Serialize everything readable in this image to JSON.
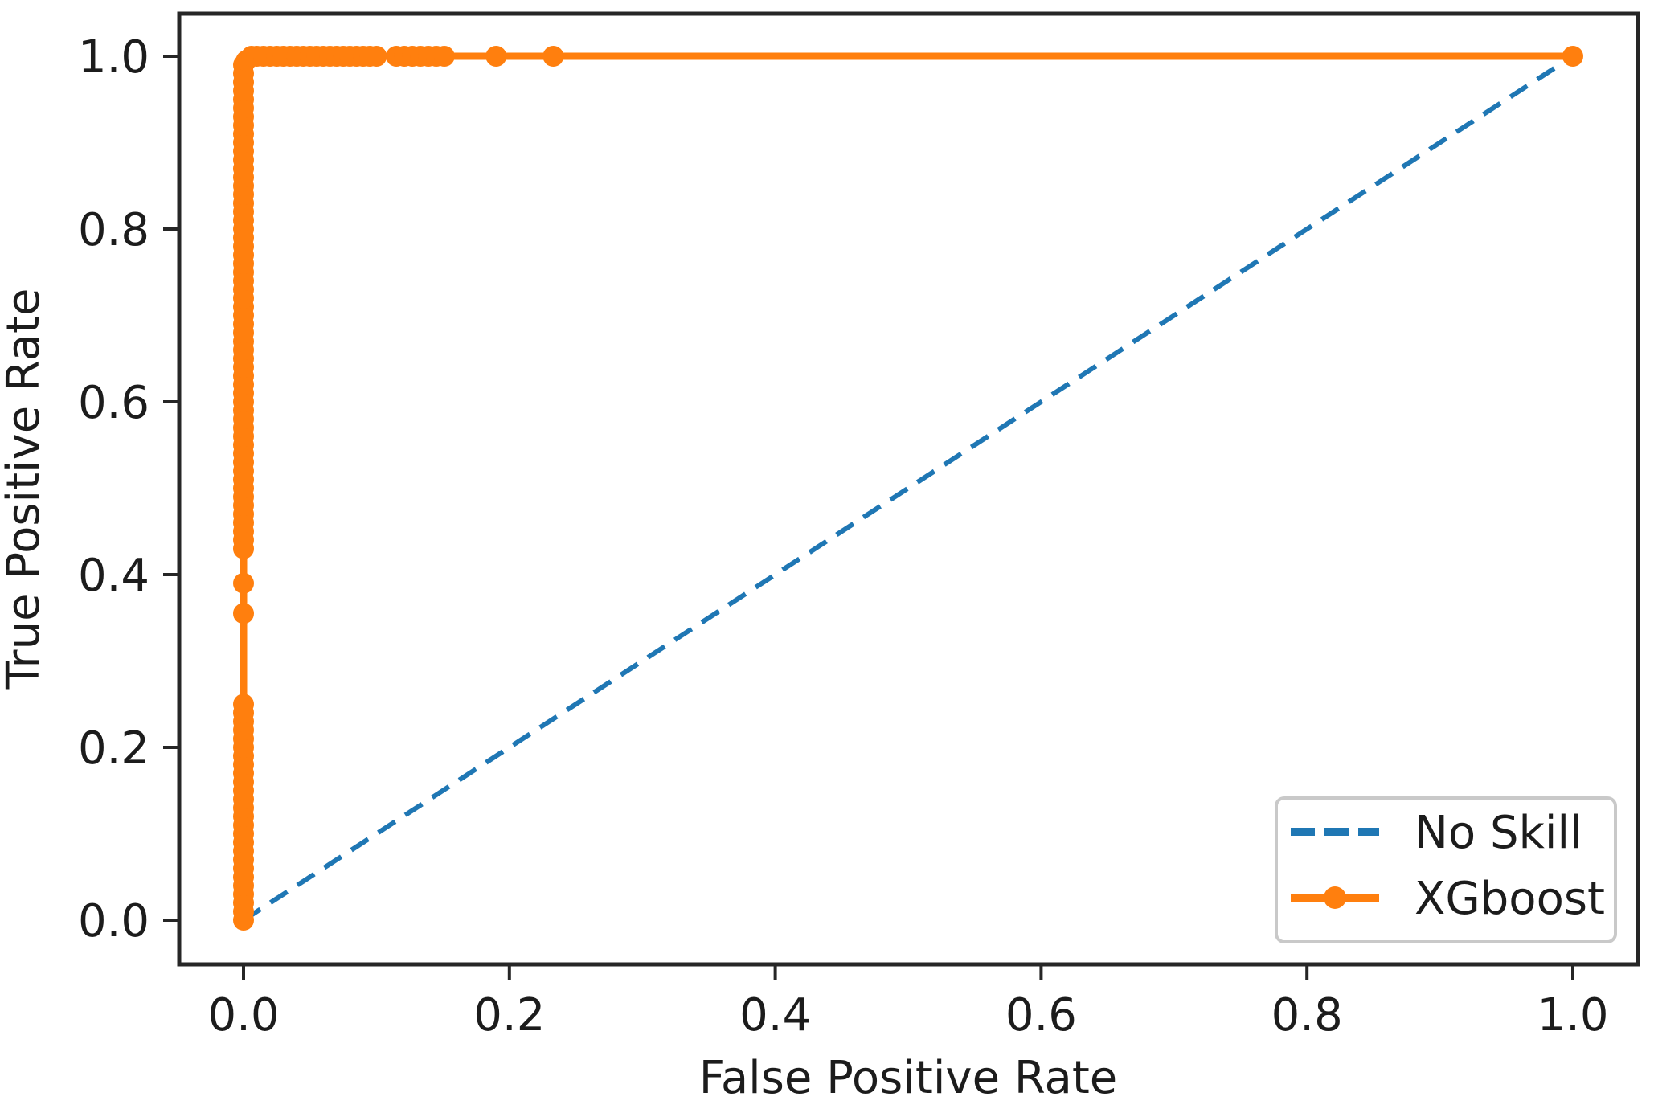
{
  "figure": {
    "background": "#ffffff",
    "axis_color": "#262626",
    "text_color": "#1c1c1c",
    "legend_border_color": "#c9c9c9"
  },
  "chart_data": {
    "type": "line",
    "title": "",
    "xlabel": "False Positive Rate",
    "ylabel": "True Positive Rate",
    "xlim": [
      -0.05,
      1.05
    ],
    "ylim": [
      -0.05,
      1.05
    ],
    "xticks": [
      "0.0",
      "0.2",
      "0.4",
      "0.6",
      "0.8",
      "1.0"
    ],
    "yticks": [
      "0.0",
      "0.2",
      "0.4",
      "0.6",
      "0.8",
      "1.0"
    ],
    "grid": false,
    "legend_position": "lower right",
    "series": [
      {
        "name": "No Skill",
        "style": "dashed",
        "color": "#1f77b4",
        "marker": "none",
        "points": [
          [
            0,
            0
          ],
          [
            1,
            1
          ]
        ]
      },
      {
        "name": "XGboost",
        "style": "solid",
        "color": "#ff7f0e",
        "marker": "dot",
        "points": [
          [
            0,
            0
          ],
          [
            0,
            0.01
          ],
          [
            0,
            0.02
          ],
          [
            0,
            0.03
          ],
          [
            0,
            0.04
          ],
          [
            0,
            0.05
          ],
          [
            0,
            0.06
          ],
          [
            0,
            0.07
          ],
          [
            0,
            0.08
          ],
          [
            0,
            0.09
          ],
          [
            0,
            0.1
          ],
          [
            0,
            0.11
          ],
          [
            0,
            0.12
          ],
          [
            0,
            0.13
          ],
          [
            0,
            0.14
          ],
          [
            0,
            0.15
          ],
          [
            0,
            0.16
          ],
          [
            0,
            0.17
          ],
          [
            0,
            0.18
          ],
          [
            0,
            0.19
          ],
          [
            0,
            0.2
          ],
          [
            0,
            0.21
          ],
          [
            0,
            0.22
          ],
          [
            0,
            0.23
          ],
          [
            0,
            0.24
          ],
          [
            0,
            0.25
          ],
          [
            0,
            0.355
          ],
          [
            0,
            0.39
          ],
          [
            0,
            0.43
          ],
          [
            0,
            0.44
          ],
          [
            0,
            0.45
          ],
          [
            0,
            0.46
          ],
          [
            0,
            0.47
          ],
          [
            0,
            0.48
          ],
          [
            0,
            0.49
          ],
          [
            0,
            0.5
          ],
          [
            0,
            0.51
          ],
          [
            0,
            0.52
          ],
          [
            0,
            0.53
          ],
          [
            0,
            0.54
          ],
          [
            0,
            0.55
          ],
          [
            0,
            0.56
          ],
          [
            0,
            0.57
          ],
          [
            0,
            0.58
          ],
          [
            0,
            0.59
          ],
          [
            0,
            0.6
          ],
          [
            0,
            0.61
          ],
          [
            0,
            0.62
          ],
          [
            0,
            0.63
          ],
          [
            0,
            0.64
          ],
          [
            0,
            0.65
          ],
          [
            0,
            0.66
          ],
          [
            0,
            0.67
          ],
          [
            0,
            0.68
          ],
          [
            0,
            0.69
          ],
          [
            0,
            0.7
          ],
          [
            0,
            0.71
          ],
          [
            0,
            0.72
          ],
          [
            0,
            0.73
          ],
          [
            0,
            0.74
          ],
          [
            0,
            0.75
          ],
          [
            0,
            0.76
          ],
          [
            0,
            0.77
          ],
          [
            0,
            0.78
          ],
          [
            0,
            0.79
          ],
          [
            0,
            0.8
          ],
          [
            0,
            0.81
          ],
          [
            0,
            0.82
          ],
          [
            0,
            0.83
          ],
          [
            0,
            0.84
          ],
          [
            0,
            0.85
          ],
          [
            0,
            0.86
          ],
          [
            0,
            0.87
          ],
          [
            0,
            0.88
          ],
          [
            0,
            0.89
          ],
          [
            0,
            0.9
          ],
          [
            0,
            0.91
          ],
          [
            0,
            0.92
          ],
          [
            0,
            0.93
          ],
          [
            0,
            0.94
          ],
          [
            0,
            0.95
          ],
          [
            0,
            0.96
          ],
          [
            0,
            0.97
          ],
          [
            0,
            0.98
          ],
          [
            0,
            0.99
          ],
          [
            0.002,
            0.995
          ],
          [
            0.006,
            1
          ],
          [
            0.01,
            1
          ],
          [
            0.015,
            1
          ],
          [
            0.02,
            1
          ],
          [
            0.025,
            1
          ],
          [
            0.03,
            1
          ],
          [
            0.035,
            1
          ],
          [
            0.04,
            1
          ],
          [
            0.045,
            1
          ],
          [
            0.05,
            1
          ],
          [
            0.055,
            1
          ],
          [
            0.06,
            1
          ],
          [
            0.065,
            1
          ],
          [
            0.07,
            1
          ],
          [
            0.075,
            1
          ],
          [
            0.08,
            1
          ],
          [
            0.085,
            1
          ],
          [
            0.09,
            1
          ],
          [
            0.095,
            1
          ],
          [
            0.1,
            1
          ],
          [
            0.115,
            1
          ],
          [
            0.121,
            1
          ],
          [
            0.127,
            1
          ],
          [
            0.133,
            1
          ],
          [
            0.139,
            1
          ],
          [
            0.145,
            1
          ],
          [
            0.151,
            1
          ],
          [
            0.19,
            1
          ],
          [
            0.233,
            1
          ],
          [
            1,
            1
          ]
        ]
      }
    ]
  }
}
